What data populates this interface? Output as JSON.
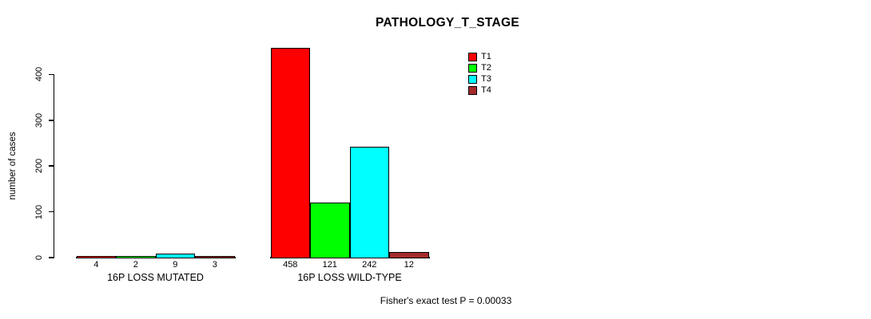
{
  "chart_data": {
    "type": "bar",
    "title": "PATHOLOGY_T_STAGE",
    "ylabel": "number of cases",
    "xlabel": "",
    "categories": [
      "16P LOSS MUTATED",
      "16P LOSS WILD-TYPE"
    ],
    "groups": [
      {
        "label": "16P LOSS MUTATED",
        "values": [
          4,
          2,
          9,
          3
        ]
      },
      {
        "label": "16P LOSS WILD-TYPE",
        "values": [
          458,
          121,
          242,
          12
        ]
      }
    ],
    "series": [
      {
        "name": "T1",
        "color": "#FF0000",
        "values": [
          4,
          458
        ]
      },
      {
        "name": "T2",
        "color": "#00FF00",
        "values": [
          2,
          121
        ]
      },
      {
        "name": "T3",
        "color": "#00FFFF",
        "values": [
          9,
          242
        ]
      },
      {
        "name": "T4",
        "color": "#A52A2A",
        "values": [
          3,
          12
        ]
      }
    ],
    "yticks": [
      0,
      100,
      200,
      300,
      400
    ],
    "ylim": [
      0,
      465
    ],
    "grid": false,
    "legend_position": "top-right",
    "bar_value_labels_shown": true,
    "annotation": "Fisher's exact test P = 0.00033"
  }
}
